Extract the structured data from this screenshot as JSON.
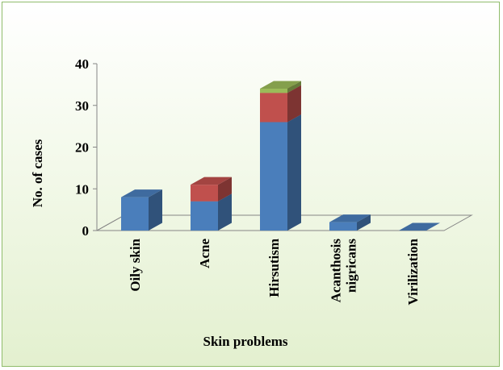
{
  "chart_data": {
    "type": "bar",
    "stacked": true,
    "three_d": true,
    "title": "",
    "xlabel": "Skin problems",
    "ylabel": "No. of cases",
    "ylim": [
      0,
      40
    ],
    "yticks": [
      0,
      10,
      20,
      30,
      40
    ],
    "grid": false,
    "legend": "none",
    "categories": [
      "Oily skin",
      "Acne",
      "Hirsutism",
      "Acanthosis nigricans",
      "Virilization"
    ],
    "category_lines": [
      [
        "Oily skin"
      ],
      [
        "Acne"
      ],
      [
        "Hirsutism"
      ],
      [
        "Acanthosis",
        "nigricans"
      ],
      [
        "Virilization"
      ]
    ],
    "series": [
      {
        "color": "#4a7ebb",
        "values": [
          8,
          7,
          26,
          2,
          0
        ]
      },
      {
        "color": "#c0504d",
        "values": [
          0,
          4,
          7,
          0,
          0
        ]
      },
      {
        "color": "#9bbb59",
        "values": [
          0,
          0,
          1,
          0,
          0
        ]
      }
    ]
  }
}
